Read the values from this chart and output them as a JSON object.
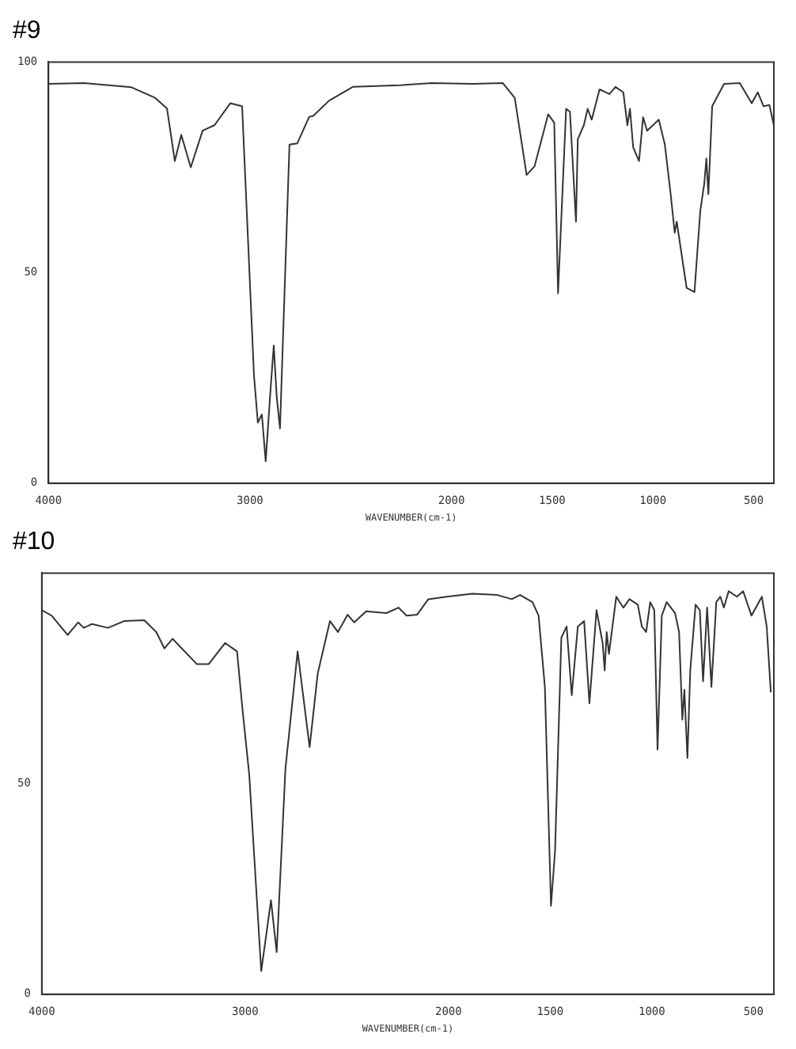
{
  "chart_data": [
    {
      "type": "line",
      "title": "#9",
      "xlabel": "WAVENUMBER(cm-1)",
      "xlim": [
        4000,
        400
      ],
      "xticks": [
        4000,
        3000,
        2000,
        1500,
        1000,
        500
      ],
      "ylim": [
        0,
        100
      ],
      "yticks": [
        0,
        50,
        100
      ],
      "grid": false,
      "legend": false,
      "x": [
        4000,
        3824,
        3588,
        3471,
        3412,
        3373,
        3341,
        3294,
        3235,
        3176,
        3098,
        3039,
        2980,
        2961,
        2941,
        2922,
        2898,
        2882,
        2867,
        2851,
        2804,
        2765,
        2706,
        2686,
        2608,
        2490,
        2255,
        2098,
        1894,
        1745,
        1686,
        1627,
        1588,
        1520,
        1490,
        1471,
        1431,
        1412,
        1382,
        1373,
        1343,
        1324,
        1304,
        1265,
        1216,
        1186,
        1147,
        1127,
        1114,
        1098,
        1069,
        1049,
        1029,
        971,
        941,
        912,
        892,
        882,
        833,
        794,
        765,
        745,
        735,
        725,
        706,
        647,
        569,
        510,
        480,
        451,
        422,
        400
      ],
      "series": [
        {
          "color": "#333333",
          "values": [
            94.8,
            95,
            94,
            91.5,
            89,
            76.5,
            82.7,
            75,
            83.7,
            85,
            90.2,
            89.5,
            25.5,
            14.4,
            16.3,
            5.2,
            22.2,
            32.7,
            20.3,
            13,
            80.4,
            80.7,
            87,
            87.2,
            90.8,
            94.1,
            94.5,
            95,
            94.8,
            95,
            91.5,
            73.2,
            75.2,
            87.6,
            85.6,
            45.1,
            88.9,
            88.2,
            62.1,
            81.7,
            85,
            88.9,
            86.3,
            93.5,
            92.4,
            94.1,
            92.8,
            85,
            88.9,
            79.7,
            76.5,
            86.9,
            83.7,
            86.3,
            80.4,
            68.6,
            59.5,
            62.1,
            46.4,
            45.4,
            64.7,
            71.2,
            77.1,
            68.6,
            89.5,
            94.8,
            95,
            90.2,
            92.8,
            89.5,
            89.8,
            85
          ]
        }
      ]
    },
    {
      "type": "line",
      "title": "#10",
      "xlabel": "WAVENUMBER(cm-1)",
      "xlim": [
        4000,
        400
      ],
      "xticks": [
        4000,
        3000,
        2000,
        1500,
        1000,
        500
      ],
      "ylim": [
        0,
        100
      ],
      "yticks": [
        0,
        50
      ],
      "grid": false,
      "legend": false,
      "x": [
        4000,
        3952,
        3873,
        3821,
        3794,
        3754,
        3675,
        3595,
        3496,
        3437,
        3397,
        3357,
        3238,
        3179,
        3099,
        3040,
        3012,
        2980,
        2921,
        2873,
        2845,
        2802,
        2742,
        2683,
        2643,
        2583,
        2544,
        2496,
        2464,
        2405,
        2306,
        2246,
        2206,
        2155,
        2099,
        2008,
        1882,
        1760,
        1689,
        1648,
        1587,
        1557,
        1526,
        1496,
        1476,
        1445,
        1419,
        1394,
        1364,
        1333,
        1307,
        1272,
        1242,
        1232,
        1222,
        1211,
        1175,
        1140,
        1110,
        1069,
        1049,
        1028,
        1008,
        988,
        972,
        951,
        927,
        886,
        866,
        850,
        840,
        825,
        811,
        785,
        764,
        748,
        728,
        707,
        683,
        663,
        646,
        622,
        581,
        551,
        510,
        459,
        435,
        415
      ],
      "series": [
        {
          "color": "#333333",
          "values": [
            91.2,
            89.9,
            85.3,
            88.3,
            87,
            87.9,
            87,
            88.6,
            88.8,
            86,
            82.1,
            84.4,
            78.4,
            78.4,
            83.4,
            81.4,
            67.1,
            52.2,
            5.5,
            22.3,
            10,
            53.5,
            81.4,
            58.7,
            76.2,
            88.6,
            86,
            90.1,
            88.3,
            90.9,
            90.5,
            91.8,
            89.9,
            90.1,
            93.8,
            94.4,
            95.1,
            94.8,
            93.8,
            94.8,
            93.1,
            89.9,
            73,
            21,
            34,
            84.7,
            87.3,
            71,
            87.3,
            88.6,
            69.1,
            91.2,
            83.4,
            76.9,
            86,
            80.8,
            94.4,
            91.8,
            93.8,
            92.5,
            87.3,
            86,
            93.1,
            91.2,
            58.1,
            89.9,
            93.1,
            90.5,
            86,
            65.2,
            72.3,
            56.1,
            76.9,
            92.5,
            91.2,
            74.3,
            91.8,
            73,
            93.1,
            94.4,
            91.8,
            95.7,
            94.4,
            95.7,
            89.9,
            94.4,
            87.3,
            71.7
          ]
        }
      ]
    }
  ]
}
